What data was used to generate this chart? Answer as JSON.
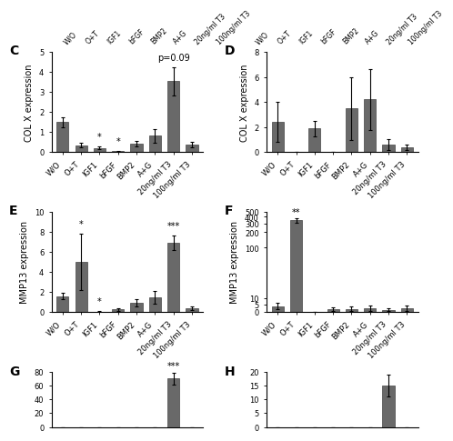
{
  "categories": [
    "W/O",
    "O+T",
    "IGF1",
    "bFGF",
    "BMP2",
    "A+G",
    "20ng/ml T3",
    "100ng/ml T3"
  ],
  "panel_C": {
    "label": "C",
    "ylabel": "COL X expression",
    "ylim": [
      0,
      5
    ],
    "yticks": [
      0,
      1,
      2,
      3,
      4,
      5
    ],
    "values": [
      1.5,
      0.35,
      0.22,
      0.05,
      0.42,
      0.82,
      3.55,
      0.38
    ],
    "errors": [
      0.25,
      0.12,
      0.08,
      0.03,
      0.12,
      0.35,
      0.7,
      0.12
    ],
    "sig": [
      null,
      null,
      "*",
      "*",
      null,
      null,
      "p=0.09",
      null
    ]
  },
  "panel_D": {
    "label": "D",
    "ylabel": "COL X expression",
    "ylim": [
      0,
      8
    ],
    "yticks": [
      0,
      2,
      4,
      6,
      8
    ],
    "values": [
      2.45,
      0.0,
      1.88,
      0.0,
      3.5,
      4.2,
      0.6,
      0.4
    ],
    "errors": [
      1.6,
      0.0,
      0.6,
      0.0,
      2.5,
      2.4,
      0.45,
      0.2
    ],
    "sig": [
      null,
      null,
      null,
      null,
      null,
      null,
      null,
      null
    ]
  },
  "panel_E": {
    "label": "E",
    "ylabel": "MMP13 expression",
    "ylim": [
      0,
      10
    ],
    "yticks": [
      0,
      2,
      4,
      6,
      8,
      10
    ],
    "values": [
      1.6,
      5.0,
      0.05,
      0.25,
      0.95,
      1.5,
      6.9,
      0.38
    ],
    "errors": [
      0.3,
      2.8,
      0.05,
      0.1,
      0.35,
      0.65,
      0.7,
      0.15
    ],
    "sig": [
      null,
      "*",
      "*",
      null,
      null,
      null,
      "***",
      null
    ]
  },
  "panel_F": {
    "label": "F",
    "ylabel": "MMP13 expression",
    "values": [
      4.3,
      340.0,
      0.2,
      2.1,
      2.3,
      2.6,
      1.7,
      2.8
    ],
    "errors": [
      2.5,
      30.0,
      0.1,
      1.0,
      1.5,
      2.0,
      1.2,
      2.0
    ],
    "sig": [
      null,
      "**",
      null,
      null,
      null,
      null,
      null,
      null
    ],
    "yticks": [
      0,
      5,
      10,
      100,
      200,
      300,
      400,
      500
    ],
    "ytick_labels": [
      "0",
      "5",
      "10",
      "100",
      "200",
      "300",
      "400",
      "500"
    ],
    "ylim": [
      0,
      500
    ]
  },
  "panel_G": {
    "label": "G",
    "ylim": [
      0,
      80
    ],
    "yticks": [
      0,
      20,
      40,
      60,
      80
    ],
    "ytick_labels": [
      "0",
      "20",
      "40",
      "60",
      "80"
    ],
    "ylabel": "",
    "sig_label": "***",
    "sig_index": 6,
    "bar_value": 70,
    "bar_error": 8
  },
  "panel_H": {
    "label": "H",
    "ylim": [
      0,
      20
    ],
    "yticks": [
      0,
      5,
      10,
      15,
      20
    ],
    "ytick_labels": [
      "0",
      "5",
      "10",
      "15",
      "20"
    ],
    "ylabel": "",
    "bar_value": 15,
    "bar_error": 4
  },
  "bar_color": "#696969",
  "bar_edge_color": "#444444",
  "bar_width": 0.65,
  "tick_fontsize": 6.0,
  "label_fontsize": 7.0,
  "sig_fontsize": 7,
  "panel_label_fontsize": 10,
  "top_labels_left": [
    "W/O",
    "O+T",
    "IGF1",
    "bFGF",
    "BMP2",
    "A+G",
    "20ng/ml T3",
    "100ng/ml T3"
  ],
  "top_labels_right": [
    "W/O",
    "O+T",
    "IGF1",
    "bFGF",
    "BMP2",
    "A+G",
    "20ng/ml T3",
    "100ng/ml T3"
  ]
}
